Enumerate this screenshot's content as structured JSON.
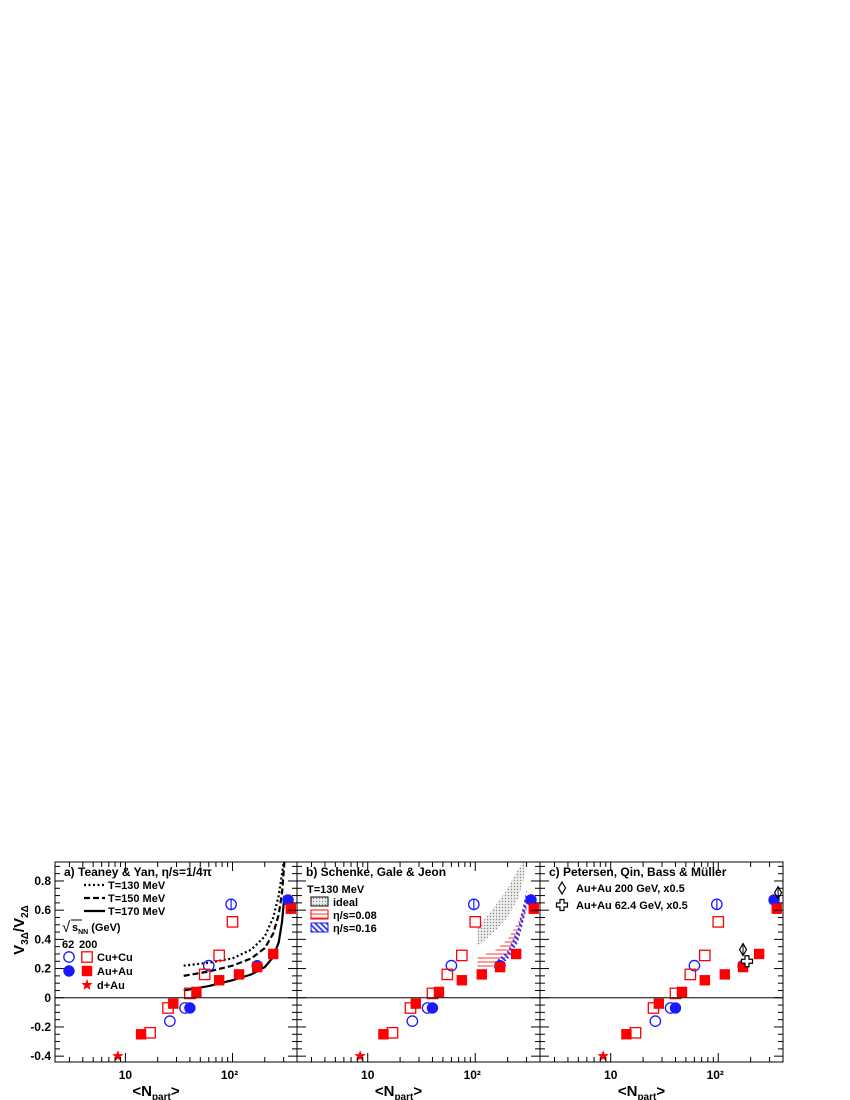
{
  "figure": {
    "ylabel": "V3Δ/V2Δ",
    "xlabel": "<Npart>",
    "ylabel_parts": {
      "main1": "V",
      "sub1": "3Δ",
      "slash": "/",
      "main2": "V",
      "sub2": "2Δ"
    },
    "xlabel_parts": {
      "open": "<N",
      "sub": "part",
      "close": ">"
    }
  },
  "chart_data": [
    {
      "type": "scatter",
      "panel": "a",
      "title": "a) Teaney & Yan, η/s=1/4π",
      "xscale": "log",
      "xlim": [
        2.2,
        400
      ],
      "ylim": [
        -0.44,
        0.93
      ],
      "x_ticklabels": [
        "10",
        "10²"
      ],
      "y_ticklabels": [
        "-0.4",
        "-0.2",
        "0",
        "0.2",
        "0.4",
        "0.6",
        "0.8"
      ],
      "zero_line": true,
      "legend_header": {
        "sqrt_label": "√sNN (GeV)",
        "sqrt_sym": "√",
        "s": "s",
        "nn": "NN",
        "unit": "(GeV)",
        "col1": "62",
        "col2": "200"
      },
      "legend": [
        {
          "label": "T=130 MeV",
          "style": "dotted"
        },
        {
          "label": "T=150 MeV",
          "style": "dashed"
        },
        {
          "label": "T=170 MeV",
          "style": "solid"
        },
        {
          "label": "Cu+Cu",
          "markers": [
            "open-circle",
            "open-square"
          ]
        },
        {
          "label": "Au+Au",
          "markers": [
            "filled-circle",
            "filled-square"
          ]
        },
        {
          "label": "d+Au",
          "markers": [
            "star"
          ]
        }
      ],
      "curves": [
        {
          "name": "T=130 MeV",
          "style": "dotted",
          "x": [
            35,
            60,
            100,
            150,
            200,
            240,
            270,
            290,
            300
          ],
          "y": [
            0.22,
            0.24,
            0.27,
            0.33,
            0.42,
            0.55,
            0.7,
            0.85,
            0.93
          ]
        },
        {
          "name": "T=150 MeV",
          "style": "dashed",
          "x": [
            35,
            60,
            100,
            150,
            200,
            240,
            270,
            290,
            305
          ],
          "y": [
            0.15,
            0.18,
            0.22,
            0.27,
            0.34,
            0.44,
            0.57,
            0.72,
            0.93
          ]
        },
        {
          "name": "T=170 MeV",
          "style": "solid",
          "x": [
            35,
            60,
            100,
            150,
            200,
            240,
            270,
            290,
            305
          ],
          "y": [
            0.05,
            0.08,
            0.12,
            0.16,
            0.21,
            0.28,
            0.38,
            0.52,
            0.7
          ]
        }
      ],
      "series": [
        {
          "name": "Cu+Cu 200",
          "marker": "open-circle",
          "color": "#1a1aff",
          "x": [
            26,
            36,
            60,
            97
          ],
          "y": [
            -0.16,
            -0.07,
            0.22,
            0.64
          ],
          "yerr": [
            0,
            0,
            0,
            0.04
          ]
        },
        {
          "name": "Cu+Cu 62",
          "marker": "open-square",
          "color": "#ff0000",
          "x": [
            17,
            25,
            40,
            55,
            75,
            100
          ],
          "y": [
            -0.24,
            -0.07,
            0.03,
            0.16,
            0.29,
            0.52
          ]
        },
        {
          "name": "Au+Au 200",
          "marker": "filled-circle",
          "color": "#1a1aff",
          "x": [
            40,
            170,
            330
          ],
          "y": [
            -0.07,
            0.22,
            0.67
          ]
        },
        {
          "name": "Au+Au 62",
          "marker": "filled-square",
          "color": "#ff0000",
          "x": [
            14,
            28,
            46,
            75,
            115,
            170,
            240,
            350
          ],
          "y": [
            -0.25,
            -0.04,
            0.04,
            0.12,
            0.16,
            0.21,
            0.3,
            0.61
          ]
        },
        {
          "name": "d+Au",
          "marker": "star",
          "color": "#ff0000",
          "x": [
            8.5
          ],
          "y": [
            -0.4
          ]
        }
      ]
    },
    {
      "type": "scatter",
      "panel": "b",
      "title": "b) Schenke, Gale & Jeon",
      "xscale": "log",
      "xlim": [
        2.2,
        400
      ],
      "ylim": [
        -0.44,
        0.93
      ],
      "x_ticklabels": [
        "10",
        "10²"
      ],
      "zero_line": true,
      "legend": [
        {
          "label": "T=130 MeV",
          "style": "text"
        },
        {
          "label": "ideal",
          "style": "gray-band"
        },
        {
          "label": "η/s=0.08",
          "style": "red-hatch"
        },
        {
          "label": "η/s=0.16",
          "style": "blue-hatch"
        }
      ],
      "bands": [
        {
          "name": "ideal",
          "x": [
            105,
            150,
            200,
            250,
            280,
            300
          ],
          "ylow": [
            0.35,
            0.45,
            0.55,
            0.68,
            0.8,
            0.93
          ],
          "yhigh": [
            0.48,
            0.62,
            0.75,
            0.88,
            0.93,
            0.93
          ]
        },
        {
          "name": "η/s=0.08",
          "x": [
            105,
            150,
            200,
            250,
            280,
            300
          ],
          "ylow": [
            0.18,
            0.22,
            0.28,
            0.4,
            0.52,
            0.6
          ],
          "yhigh": [
            0.28,
            0.32,
            0.4,
            0.52,
            0.62,
            0.7
          ]
        },
        {
          "name": "η/s=0.16",
          "x": [
            150,
            200,
            250,
            280,
            300
          ],
          "ylow": [
            0.2,
            0.26,
            0.38,
            0.52,
            0.62
          ],
          "yhigh": [
            0.24,
            0.32,
            0.48,
            0.64,
            0.74
          ]
        }
      ],
      "series": [
        {
          "name": "Cu+Cu 200",
          "marker": "open-circle",
          "color": "#1a1aff",
          "x": [
            26,
            36,
            60,
            97
          ],
          "y": [
            -0.16,
            -0.07,
            0.22,
            0.64
          ],
          "yerr": [
            0,
            0,
            0,
            0.04
          ]
        },
        {
          "name": "Cu+Cu 62",
          "marker": "open-square",
          "color": "#ff0000",
          "x": [
            17,
            25,
            40,
            55,
            75,
            100
          ],
          "y": [
            -0.24,
            -0.07,
            0.03,
            0.16,
            0.29,
            0.52
          ]
        },
        {
          "name": "Au+Au 200",
          "marker": "filled-circle",
          "color": "#1a1aff",
          "x": [
            40,
            170,
            330
          ],
          "y": [
            -0.07,
            0.22,
            0.67
          ]
        },
        {
          "name": "Au+Au 62",
          "marker": "filled-square",
          "color": "#ff0000",
          "x": [
            14,
            28,
            46,
            75,
            115,
            170,
            240,
            350
          ],
          "y": [
            -0.25,
            -0.04,
            0.04,
            0.12,
            0.16,
            0.21,
            0.3,
            0.61
          ]
        },
        {
          "name": "d+Au",
          "marker": "star",
          "color": "#ff0000",
          "x": [
            8.5
          ],
          "y": [
            -0.4
          ]
        }
      ]
    },
    {
      "type": "scatter",
      "panel": "c",
      "title": "c) Petersen, Qin, Bass & Müller",
      "xscale": "log",
      "xlim": [
        2.2,
        400
      ],
      "ylim": [
        -0.44,
        0.93
      ],
      "x_ticklabels": [
        "10",
        "10²"
      ],
      "zero_line": true,
      "legend": [
        {
          "label": "Au+Au 200 GeV, x0.5",
          "markers": [
            "open-diamond"
          ]
        },
        {
          "label": "Au+Au 62.4 GeV, x0.5",
          "markers": [
            "open-cross"
          ]
        }
      ],
      "model": [
        {
          "name": "Au+Au 200 GeV, x0.5",
          "marker": "open-diamond",
          "x": [
            170,
            360
          ],
          "y": [
            0.33,
            0.72
          ],
          "yerr": [
            0.03,
            0.03
          ]
        },
        {
          "name": "Au+Au 62.4 GeV, x0.5",
          "marker": "open-cross",
          "x": [
            185
          ],
          "y": [
            0.25
          ]
        }
      ],
      "series": [
        {
          "name": "Cu+Cu 200",
          "marker": "open-circle",
          "color": "#1a1aff",
          "x": [
            26,
            36,
            60,
            97
          ],
          "y": [
            -0.16,
            -0.07,
            0.22,
            0.64
          ],
          "yerr": [
            0,
            0,
            0,
            0.04
          ]
        },
        {
          "name": "Cu+Cu 62",
          "marker": "open-square",
          "color": "#ff0000",
          "x": [
            17,
            25,
            40,
            55,
            75,
            100
          ],
          "y": [
            -0.24,
            -0.07,
            0.03,
            0.16,
            0.29,
            0.52
          ]
        },
        {
          "name": "Au+Au 200",
          "marker": "filled-circle",
          "color": "#1a1aff",
          "x": [
            40,
            170,
            330
          ],
          "y": [
            -0.07,
            0.22,
            0.67
          ]
        },
        {
          "name": "Au+Au 62",
          "marker": "filled-square",
          "color": "#ff0000",
          "x": [
            14,
            28,
            46,
            75,
            115,
            170,
            240,
            350
          ],
          "y": [
            -0.25,
            -0.04,
            0.04,
            0.12,
            0.16,
            0.21,
            0.3,
            0.61
          ]
        },
        {
          "name": "d+Au",
          "marker": "star",
          "color": "#ff0000",
          "x": [
            8.5
          ],
          "y": [
            -0.4
          ]
        }
      ]
    }
  ]
}
